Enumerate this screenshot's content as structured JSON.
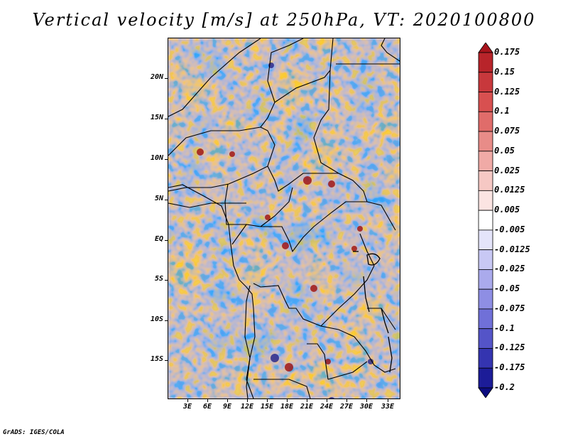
{
  "title": "Vertical velocity [m/s] at 250hPa, VT: 2020100800",
  "credit": "GrADS: IGES/COLA",
  "map": {
    "lat_labels": [
      "20N",
      "15N",
      "10N",
      "5N",
      "EQ",
      "5S",
      "10S",
      "15S"
    ],
    "lon_labels": [
      "3E",
      "6E",
      "9E",
      "12E",
      "15E",
      "18E",
      "21E",
      "24E",
      "27E",
      "30E",
      "33E"
    ]
  },
  "colorbar": {
    "labels": [
      "0.175",
      "0.15",
      "0.125",
      "0.1",
      "0.075",
      "0.05",
      "0.025",
      "0.0125",
      "0.005",
      "-0.005",
      "-0.0125",
      "-0.025",
      "-0.05",
      "-0.075",
      "-0.1",
      "-0.125",
      "-0.175",
      "-0.2"
    ],
    "colors": [
      "#a8141c",
      "#b8242a",
      "#c8383c",
      "#d85050",
      "#e06c6a",
      "#e88c88",
      "#f0aaa6",
      "#f6c8c4",
      "#fbe4e2",
      "#ffffff",
      "#e4e4fa",
      "#c8c8f4",
      "#aaaaec",
      "#8e8ee4",
      "#7070d8",
      "#5454c8",
      "#3434b0",
      "#1c1c98",
      "#0c0c80"
    ]
  }
}
